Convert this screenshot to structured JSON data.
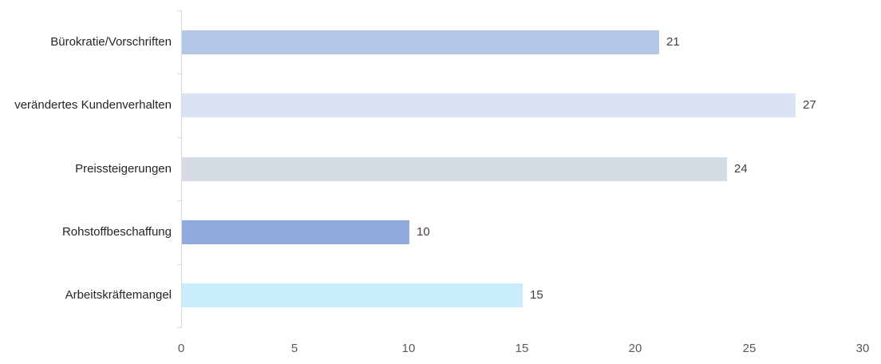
{
  "chart_data": {
    "type": "bar",
    "orientation": "horizontal",
    "title": "",
    "xlabel": "",
    "ylabel": "",
    "categories": [
      "Bürokratie/Vorschriften",
      "verändertes Kundenverhalten",
      "Preissteigerungen",
      "Rohstoffbeschaffung",
      "Arbeitskräftemangel"
    ],
    "values": [
      21,
      27,
      24,
      10,
      15
    ],
    "data_labels": [
      "21",
      "27",
      "24",
      "10",
      "15"
    ],
    "bar_colors": [
      "#B4C7E7",
      "#DAE3F3",
      "#D6DCE5",
      "#8FAADC",
      "#CAEDFB"
    ],
    "x_ticks": [
      "0",
      "5",
      "10",
      "15",
      "20",
      "25",
      "30"
    ],
    "x_tick_values": [
      0,
      5,
      10,
      15,
      20,
      25,
      30
    ],
    "xlim": [
      0,
      30
    ],
    "grid": false,
    "legend": false,
    "colors": {
      "axis_line": "#D9D9D9",
      "category_label": "#262626",
      "value_label": "#404040",
      "tick_label": "#595959",
      "background": "#ffffff"
    }
  }
}
